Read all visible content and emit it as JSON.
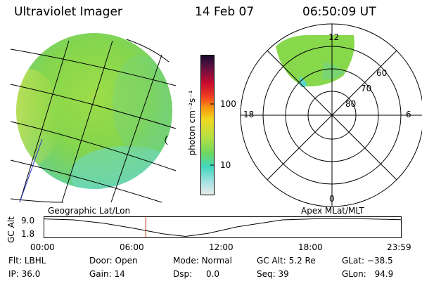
{
  "header": {
    "title": "Ultraviolet Imager",
    "date": "14 Feb 07",
    "time": "06:50:09 UT"
  },
  "colorbar": {
    "unit_label": "photon cm⁻²s⁻¹",
    "ticks": [
      "100",
      "10"
    ]
  },
  "polar_plot": {
    "mlt_labels": [
      "12",
      "18",
      "6",
      "0"
    ],
    "mlat_labels": [
      "60",
      "70",
      "80"
    ]
  },
  "timeline": {
    "left_title": "Geographic Lat/Lon",
    "right_title": "Apex MLat/MLT",
    "y_label": "GC Alt",
    "y_ticks": [
      "9.0",
      "1.8"
    ],
    "x_ticks": [
      "00:00",
      "06:00",
      "12:00",
      "18:00",
      "23:59"
    ]
  },
  "chart_data": {
    "type": "line",
    "title": "",
    "ylabel": "GC Alt",
    "xlabel": "",
    "x_range": [
      "00:00",
      "23:59"
    ],
    "ylim": [
      1.8,
      9.0
    ],
    "series": [
      {
        "x": [
          0,
          2,
          4,
          6,
          8,
          9.5,
          11,
          13,
          16,
          19,
          21,
          23.98
        ],
        "values": [
          8.7,
          8.3,
          7.0,
          5.0,
          2.8,
          1.8,
          3.0,
          5.6,
          8.3,
          8.9,
          8.8,
          8.4
        ]
      }
    ],
    "marker_time": "06:50",
    "marker_color": "#cc3300",
    "grid": false
  },
  "status": {
    "flt_label": "Flt:",
    "flt_value": "LBHL",
    "ip_label": "IP:",
    "ip_value": "36.0",
    "door_label": "Door:",
    "door_value": "Open",
    "gain_label": "Gain:",
    "gain_value": "14",
    "mode_label": "Mode:",
    "mode_value": "Normal",
    "dsp_label": "Dsp:",
    "dsp_value": "0.0",
    "gcalt_label": "GC Alt:",
    "gcalt_value": "5.2 Re",
    "seq_label": "Seq:",
    "seq_value": "39",
    "glat_label": "GLat:",
    "glat_value": "−38.5",
    "glon_label": "GLon:",
    "glon_value": "94.9"
  },
  "colors": {
    "image_green": "#8fd94a",
    "image_yellow": "#dfe84a",
    "image_cyan": "#5fd8c8",
    "marker": "#cc3300"
  }
}
